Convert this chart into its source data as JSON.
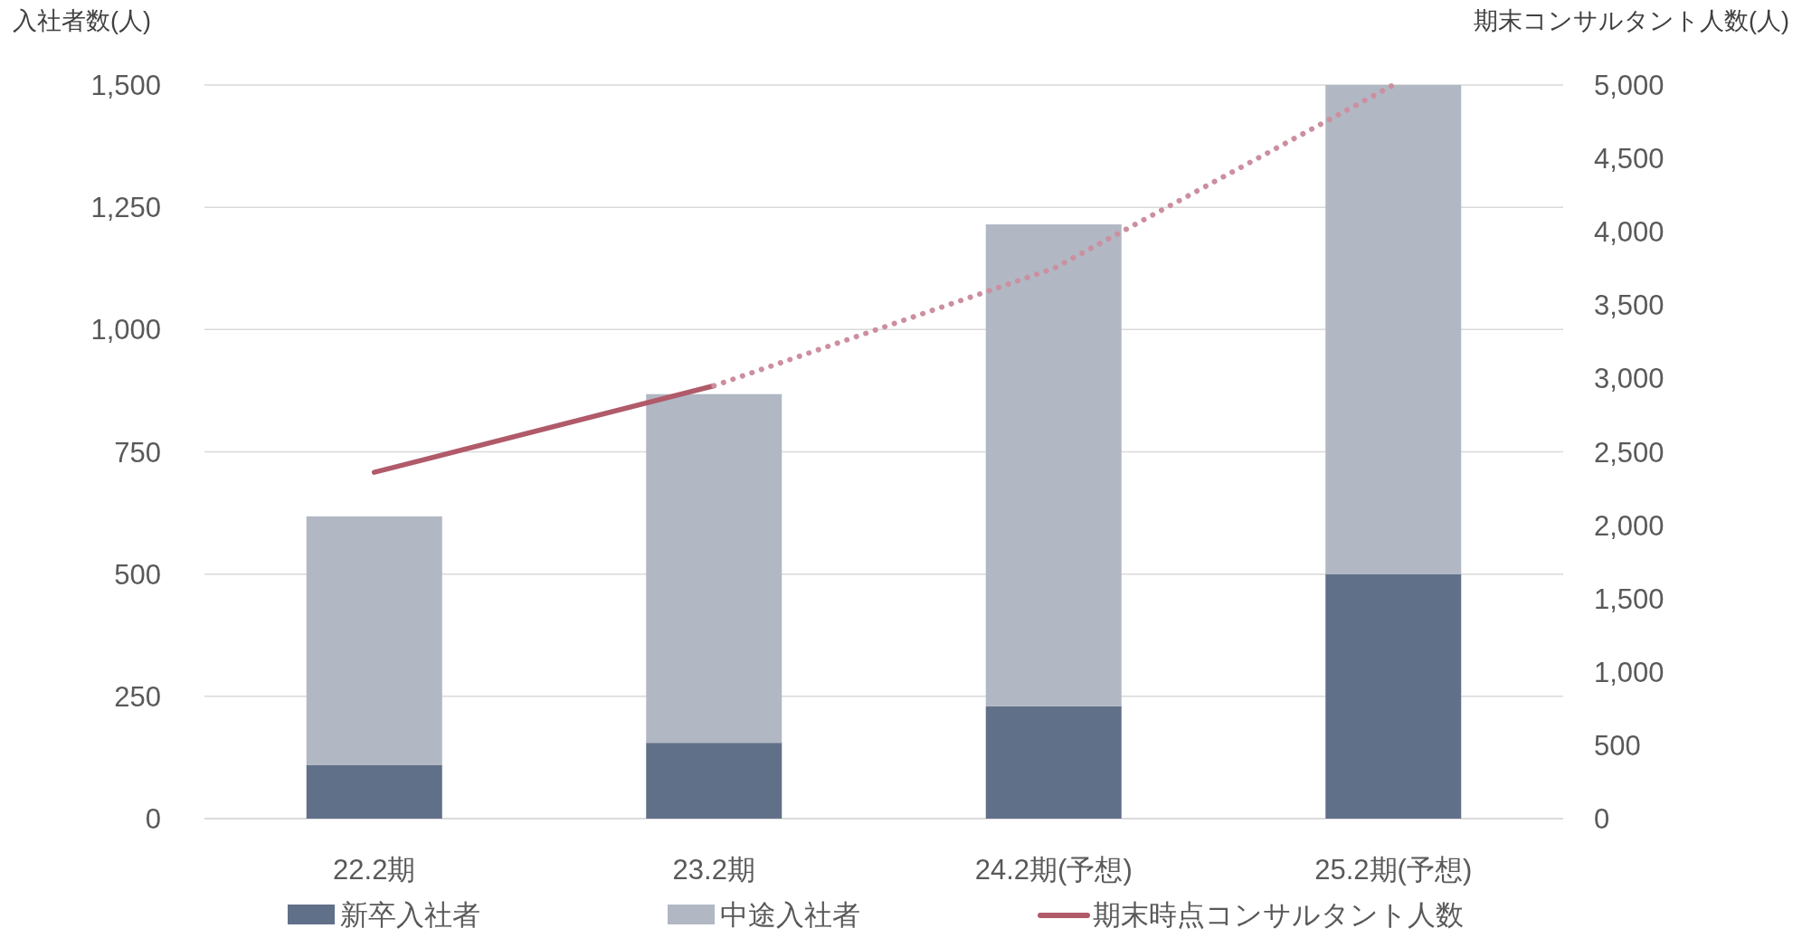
{
  "chart_data": {
    "type": "bar",
    "stacked": true,
    "categories": [
      "22.2期",
      "23.2期",
      "24.2期(予想)",
      "25.2期(予想)"
    ],
    "ylabel": "入社者数(人)",
    "y2label": "期末コンサルタント人数(人)",
    "ylim": [
      0,
      1500
    ],
    "yticks": [
      0,
      250,
      500,
      750,
      {
        "value": 1000,
        "label": "1,000"
      },
      {
        "value": 1250,
        "label": "1,250"
      },
      {
        "value": 1500,
        "label": "1,500"
      }
    ],
    "y2lim": [
      0,
      5000
    ],
    "y2ticks": [
      0,
      500,
      {
        "value": 1000,
        "label": "1,000"
      },
      {
        "value": 1500,
        "label": "1,500"
      },
      {
        "value": 2000,
        "label": "2,000"
      },
      {
        "value": 2500,
        "label": "2,500"
      },
      {
        "value": 3000,
        "label": "3,000"
      },
      {
        "value": 3500,
        "label": "3,500"
      },
      {
        "value": 4000,
        "label": "4,000"
      },
      {
        "value": 4500,
        "label": "4,500"
      },
      {
        "value": 5000,
        "label": "5,000"
      }
    ],
    "grid": "y",
    "legend": "bottom",
    "series": [
      {
        "name": "新卒入社者",
        "color": "#617089",
        "values": [
          110,
          155,
          230,
          500
        ]
      },
      {
        "name": "中途入社者",
        "color": "#b1b7c3",
        "values": [
          508,
          713,
          985,
          1000
        ]
      },
      {
        "name": "期末時点コンサルタント人数",
        "type": "line",
        "axis": "y2",
        "color": "#b05a6a",
        "line_style": "solid",
        "values": [
          2360,
          2950,
          null,
          null
        ]
      },
      {
        "type": "line",
        "axis": "y2",
        "color": "#cc8fa0",
        "line_style": "dotted",
        "values": [
          null,
          2950,
          3750,
          5000
        ]
      }
    ]
  }
}
